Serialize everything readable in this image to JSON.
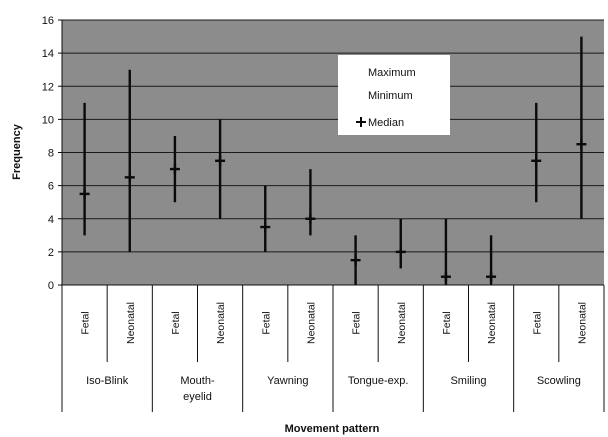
{
  "chart_data": {
    "type": "high-low-median",
    "xlabel": "Movement pattern",
    "ylabel": "Frequency",
    "ylim": [
      0,
      16
    ],
    "yticks": [
      0,
      2,
      4,
      6,
      8,
      10,
      12,
      14,
      16
    ],
    "grid": true,
    "legend_position": "top-right",
    "legend": [
      "Maximum",
      "Minimum",
      "Median"
    ],
    "groups": [
      {
        "label": "Iso-Blink",
        "categories": [
          "Fetal",
          "Neonatal"
        ]
      },
      {
        "label": "Mouth-\neyelid",
        "categories": [
          "Fetal",
          "Neonatal"
        ]
      },
      {
        "label": "Yawning",
        "categories": [
          "Fetal",
          "Neonatal"
        ]
      },
      {
        "label": "Tongue-exp.",
        "categories": [
          "Fetal",
          "Neonatal"
        ]
      },
      {
        "label": "Smiling",
        "categories": [
          "Fetal",
          "Neonatal"
        ]
      },
      {
        "label": "Scowling",
        "categories": [
          "Fetal",
          "Neonatal"
        ]
      }
    ],
    "points": [
      {
        "group": "Iso-Blink",
        "category": "Fetal",
        "max": 11,
        "min": 3,
        "median": 5.5
      },
      {
        "group": "Iso-Blink",
        "category": "Neonatal",
        "max": 13,
        "min": 2,
        "median": 6.5
      },
      {
        "group": "Mouth-eyelid",
        "category": "Fetal",
        "max": 9,
        "min": 5,
        "median": 7
      },
      {
        "group": "Mouth-eyelid",
        "category": "Neonatal",
        "max": 10,
        "min": 4,
        "median": 7.5
      },
      {
        "group": "Yawning",
        "category": "Fetal",
        "max": 6,
        "min": 2,
        "median": 3.5
      },
      {
        "group": "Yawning",
        "category": "Neonatal",
        "max": 7,
        "min": 3,
        "median": 4
      },
      {
        "group": "Tongue-exp.",
        "category": "Fetal",
        "max": 3,
        "min": 0,
        "median": 1.5
      },
      {
        "group": "Tongue-exp.",
        "category": "Neonatal",
        "max": 4,
        "min": 1,
        "median": 2
      },
      {
        "group": "Smiling",
        "category": "Fetal",
        "max": 4,
        "min": 0,
        "median": 0.5
      },
      {
        "group": "Smiling",
        "category": "Neonatal",
        "max": 3,
        "min": 0,
        "median": 0.5
      },
      {
        "group": "Scowling",
        "category": "Fetal",
        "max": 11,
        "min": 5,
        "median": 7.5
      },
      {
        "group": "Scowling",
        "category": "Neonatal",
        "max": 15,
        "min": 4,
        "median": 8.5
      }
    ],
    "colors": {
      "plot_background": "#8c8c8c",
      "gridline": "#1a1a1a",
      "bar": "#0a0a0a",
      "legend_background": "#ffffff"
    }
  }
}
